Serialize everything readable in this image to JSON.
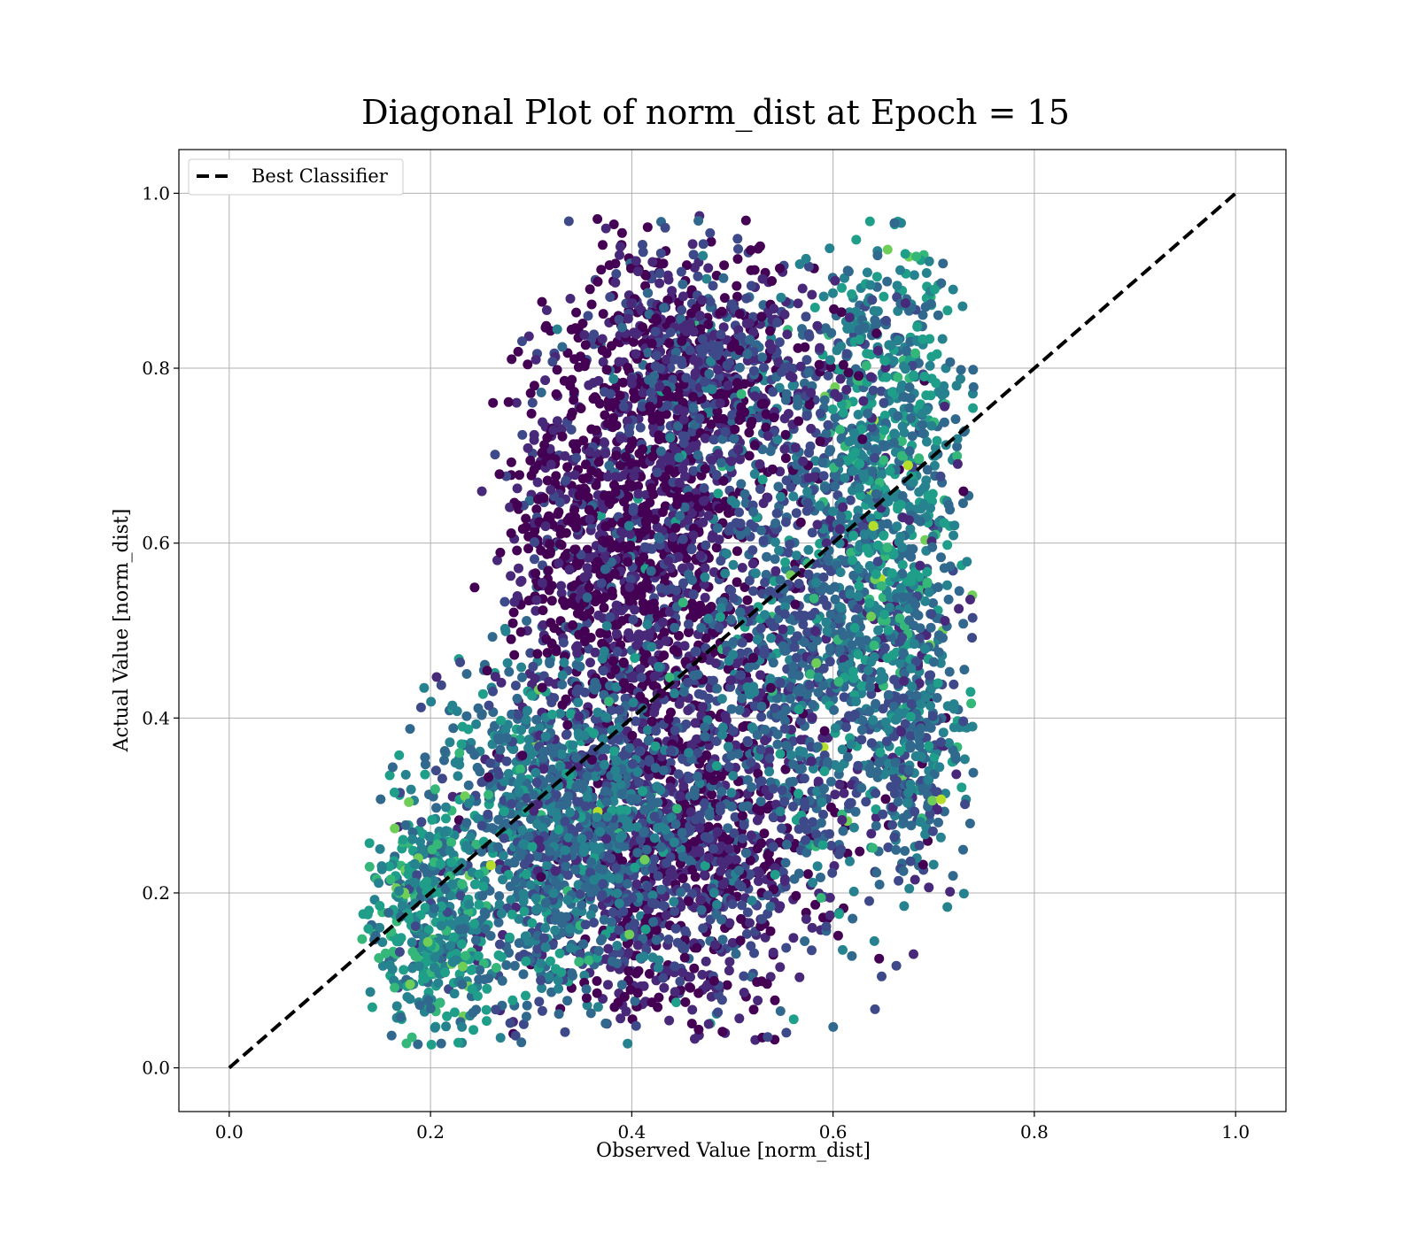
{
  "chart_data": {
    "type": "scatter",
    "title": "Diagonal Plot of norm_dist at Epoch = 15",
    "xlabel": "Observed Value [norm_dist]",
    "ylabel": "Actual Value [norm_dist]",
    "xlim": [
      -0.05,
      1.05
    ],
    "ylim": [
      -0.05,
      1.05
    ],
    "xticks": [
      {
        "value": 0.0,
        "label": "0.0"
      },
      {
        "value": 0.2,
        "label": "0.2"
      },
      {
        "value": 0.4,
        "label": "0.4"
      },
      {
        "value": 0.6,
        "label": "0.6"
      },
      {
        "value": 0.8,
        "label": "0.8"
      },
      {
        "value": 1.0,
        "label": "1.0"
      }
    ],
    "yticks": [
      {
        "value": 0.0,
        "label": "0.0"
      },
      {
        "value": 0.2,
        "label": "0.2"
      },
      {
        "value": 0.4,
        "label": "0.4"
      },
      {
        "value": 0.6,
        "label": "0.6"
      },
      {
        "value": 0.8,
        "label": "0.8"
      },
      {
        "value": 1.0,
        "label": "1.0"
      }
    ],
    "grid": true,
    "legend": {
      "placement": "top-left",
      "entries": [
        {
          "label": "Best Classifier",
          "style": "dashed",
          "color": "#000000"
        }
      ]
    },
    "reference_line": {
      "name": "Best Classifier",
      "x": [
        0.0,
        1.0
      ],
      "y": [
        0.0,
        1.0
      ],
      "color": "#000000",
      "style": "dashed"
    },
    "colormap": "viridis",
    "colormap_stops": [
      "#440154",
      "#482878",
      "#3e4989",
      "#31688e",
      "#26828e",
      "#1f9e89",
      "#35b779",
      "#6ece58",
      "#b5de2b"
    ],
    "point_clusters": [
      {
        "cx": 0.42,
        "cy": 0.62,
        "sx": 0.055,
        "sy": 0.17,
        "count": 1500,
        "color_mean": 0.1
      },
      {
        "cx": 0.45,
        "cy": 0.25,
        "sx": 0.07,
        "sy": 0.11,
        "count": 1100,
        "color_mean": 0.15
      },
      {
        "cx": 0.33,
        "cy": 0.28,
        "sx": 0.06,
        "sy": 0.1,
        "count": 1200,
        "color_mean": 0.4
      },
      {
        "cx": 0.2,
        "cy": 0.17,
        "sx": 0.035,
        "sy": 0.07,
        "count": 500,
        "color_mean": 0.55
      },
      {
        "cx": 0.58,
        "cy": 0.5,
        "sx": 0.06,
        "sy": 0.16,
        "count": 1100,
        "color_mean": 0.35
      },
      {
        "cx": 0.66,
        "cy": 0.7,
        "sx": 0.035,
        "sy": 0.14,
        "count": 700,
        "color_mean": 0.5
      },
      {
        "cx": 0.5,
        "cy": 0.8,
        "sx": 0.06,
        "sy": 0.07,
        "count": 500,
        "color_mean": 0.2
      },
      {
        "cx": 0.33,
        "cy": 0.62,
        "sx": 0.03,
        "sy": 0.1,
        "count": 250,
        "color_mean": 0.08
      },
      {
        "cx": 0.68,
        "cy": 0.38,
        "sx": 0.025,
        "sy": 0.09,
        "count": 300,
        "color_mean": 0.4
      }
    ],
    "x_extent": [
      0.13,
      0.74
    ],
    "y_extent": [
      0.025,
      0.975
    ]
  }
}
